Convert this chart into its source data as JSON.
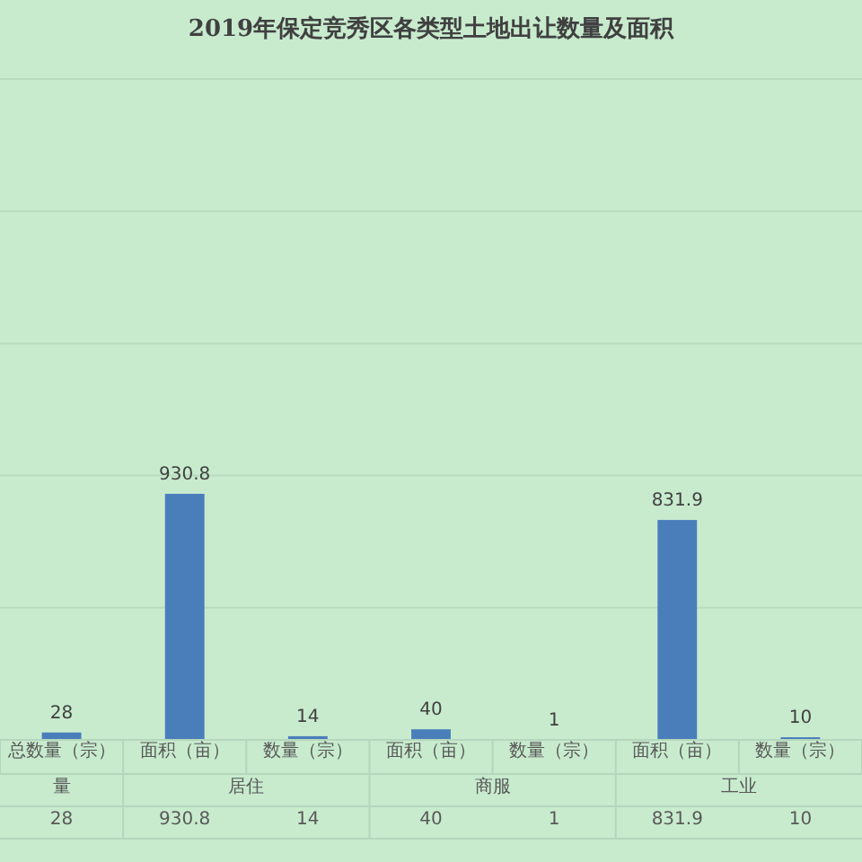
{
  "chart_data": {
    "type": "bar",
    "title": "2019年保定竞秀区各类型土地出让数量及面积",
    "categories": [
      "总数量（宗）",
      "面积（亩）",
      "数量（宗）",
      "面积（亩）",
      "数量（宗）",
      "面积（亩）",
      "数量（宗）"
    ],
    "values": [
      28,
      930.8,
      14,
      40,
      1,
      831.9,
      10
    ],
    "color": "#4a7ebb",
    "value_labels": [
      "28",
      "930.8",
      "14",
      "40",
      "1",
      "831.9",
      "10"
    ],
    "ylim": [
      0,
      2500
    ],
    "yticks": [
      {
        "value": 0,
        "label": null
      },
      {
        "value": 500,
        "label": null
      },
      {
        "value": 1000,
        "label": null
      },
      {
        "value": 1500,
        "label": null
      },
      {
        "value": 2000,
        "label": null
      },
      {
        "value": 2500,
        "label": null
      }
    ],
    "grid": "y",
    "tick_labels": "x",
    "annotations": [
      "量",
      "居住",
      "商服",
      "工业",
      "28",
      "930.8",
      "14",
      "40",
      "1",
      "831.9",
      "10"
    ]
  }
}
